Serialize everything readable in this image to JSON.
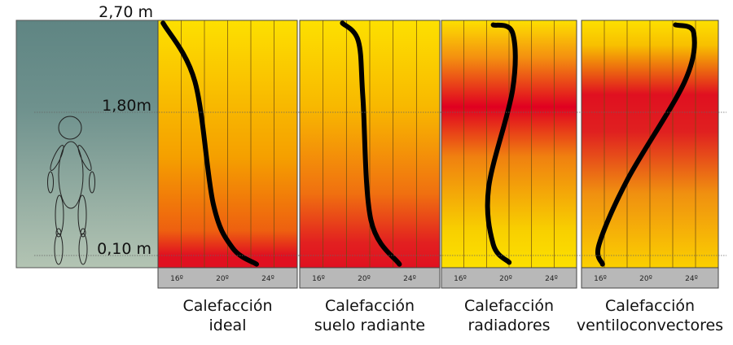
{
  "heights": [
    "2,70 m",
    "1,80m",
    "0,10 m"
  ],
  "ticks": [
    "16º",
    "20º",
    "24º"
  ],
  "panels": [
    {
      "caption": [
        "Calefacción",
        "ideal"
      ],
      "gradient": [
        [
          0,
          "#fde000"
        ],
        [
          0.55,
          "#f5a000"
        ],
        [
          0.85,
          "#ee6010"
        ],
        [
          0.95,
          "#e01020"
        ],
        [
          1,
          "#e01020"
        ]
      ],
      "curve": [
        [
          14.8,
          2.67
        ],
        [
          17.6,
          2.02
        ],
        [
          19.2,
          0.67
        ],
        [
          20.9,
          0.18
        ],
        [
          23.0,
          0.0
        ]
      ]
    },
    {
      "caption": [
        "Calefacción",
        "suelo radiante"
      ],
      "gradient": [
        [
          0,
          "#fde000"
        ],
        [
          0.35,
          "#f8b800"
        ],
        [
          0.7,
          "#f07010"
        ],
        [
          0.9,
          "#e22020"
        ],
        [
          1,
          "#e01020"
        ]
      ],
      "curve": [
        [
          18.1,
          2.67
        ],
        [
          19.5,
          2.47
        ],
        [
          19.9,
          1.84
        ],
        [
          20.6,
          0.49
        ],
        [
          23.1,
          0.0
        ]
      ]
    },
    {
      "caption": [
        "Calefacción",
        "radiadores"
      ],
      "gradient": [
        [
          0,
          "#fde000"
        ],
        [
          0.15,
          "#f49010"
        ],
        [
          0.35,
          "#e00020"
        ],
        [
          0.55,
          "#f08010"
        ],
        [
          0.85,
          "#f8d000"
        ],
        [
          1,
          "#fde000"
        ]
      ],
      "curve": [
        [
          18.9,
          2.65
        ],
        [
          20.6,
          2.56
        ],
        [
          20.6,
          1.93
        ],
        [
          18.5,
          0.85
        ],
        [
          18.9,
          0.22
        ],
        [
          20.3,
          0.02
        ]
      ]
    },
    {
      "caption": [
        "Calefacción",
        "ventiloconvectores"
      ],
      "gradient": [
        [
          0,
          "#fde000"
        ],
        [
          0.1,
          "#f8c000"
        ],
        [
          0.3,
          "#e01020"
        ],
        [
          0.45,
          "#e02020"
        ],
        [
          0.7,
          "#f09010"
        ],
        [
          1,
          "#fbd000"
        ]
      ],
      "curve": [
        [
          22.6,
          2.65
        ],
        [
          24.2,
          2.56
        ],
        [
          23.4,
          2.02
        ],
        [
          18.4,
          0.94
        ],
        [
          15.9,
          0.22
        ],
        [
          16.2,
          0.0
        ]
      ]
    }
  ]
}
